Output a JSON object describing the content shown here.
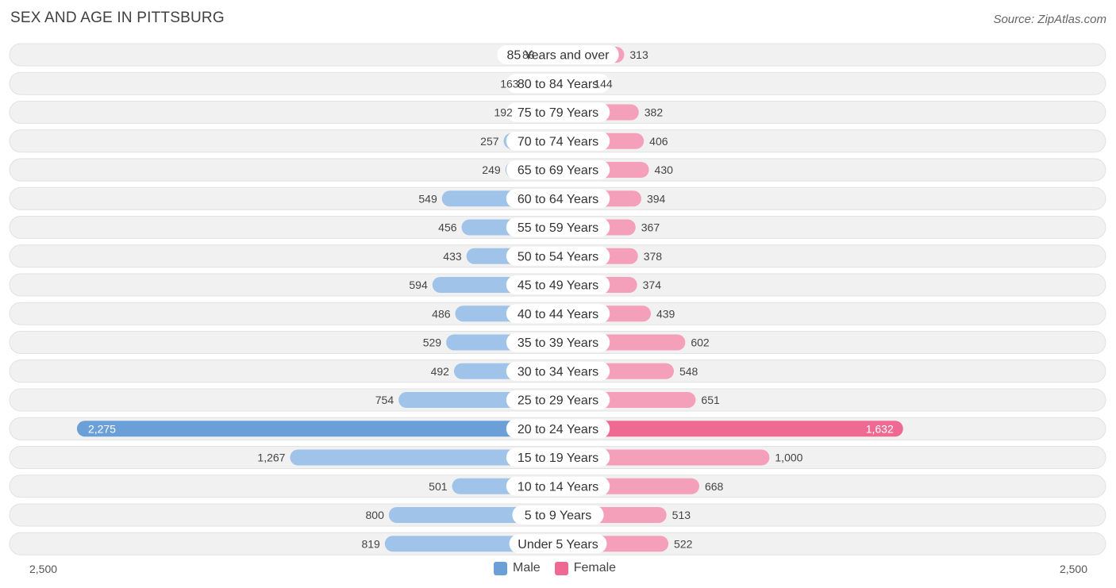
{
  "title": "SEX AND AGE IN PITTSBURG",
  "source": "Source: ZipAtlas.com",
  "colors": {
    "male": "#9fc3e9",
    "male_strong": "#6a9fd8",
    "female": "#f5a0bb",
    "female_strong": "#ef6a93",
    "row_bg": "#f1f1f1"
  },
  "legend": {
    "male": "Male",
    "female": "Female"
  },
  "axis": {
    "left_label": "2,500",
    "right_label": "2,500"
  },
  "chart_data": {
    "type": "bar",
    "orientation": "horizontal-diverging",
    "title": "SEX AND AGE IN PITTSBURG",
    "xlim": [
      -2500,
      2500
    ],
    "categories": [
      "85 Years and over",
      "80 to 84 Years",
      "75 to 79 Years",
      "70 to 74 Years",
      "65 to 69 Years",
      "60 to 64 Years",
      "55 to 59 Years",
      "50 to 54 Years",
      "45 to 49 Years",
      "40 to 44 Years",
      "35 to 39 Years",
      "30 to 34 Years",
      "25 to 29 Years",
      "20 to 24 Years",
      "15 to 19 Years",
      "10 to 14 Years",
      "5 to 9 Years",
      "Under 5 Years"
    ],
    "series": [
      {
        "name": "Male",
        "values": [
          88,
          163,
          192,
          257,
          249,
          549,
          456,
          433,
          594,
          486,
          529,
          492,
          754,
          2275,
          1267,
          501,
          800,
          819
        ],
        "labels": [
          "88",
          "163",
          "192",
          "257",
          "249",
          "549",
          "456",
          "433",
          "594",
          "486",
          "529",
          "492",
          "754",
          "2,275",
          "1,267",
          "501",
          "800",
          "819"
        ]
      },
      {
        "name": "Female",
        "values": [
          313,
          144,
          382,
          406,
          430,
          394,
          367,
          378,
          374,
          439,
          602,
          548,
          651,
          1632,
          1000,
          668,
          513,
          522
        ],
        "labels": [
          "313",
          "144",
          "382",
          "406",
          "430",
          "394",
          "367",
          "378",
          "374",
          "439",
          "602",
          "548",
          "651",
          "1,632",
          "1,000",
          "668",
          "513",
          "522"
        ]
      }
    ]
  }
}
